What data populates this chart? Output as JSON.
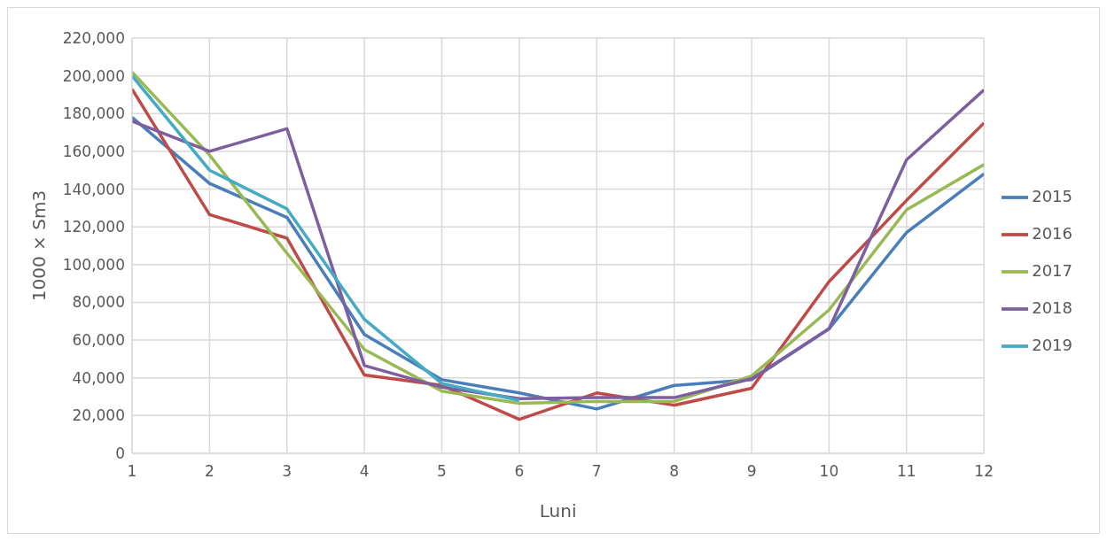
{
  "chart_data": {
    "type": "line",
    "xlabel": "Luni",
    "ylabel": "1000 × Sm3",
    "x": [
      1,
      2,
      3,
      4,
      5,
      6,
      7,
      8,
      9,
      10,
      11,
      12
    ],
    "xlim": [
      1,
      12
    ],
    "xticks": [
      1,
      2,
      3,
      4,
      5,
      6,
      7,
      8,
      9,
      10,
      11,
      12
    ],
    "series": [
      {
        "name": "2015",
        "color": "#4a7ebb",
        "values": [
          178000,
          143000,
          125000,
          63000,
          39000,
          32000,
          23500,
          36000,
          39000,
          66000,
          117000,
          148000
        ]
      },
      {
        "name": "2016",
        "color": "#be4b48",
        "values": [
          193000,
          126500,
          114000,
          41500,
          36000,
          18000,
          32000,
          25500,
          34500,
          91000,
          134000,
          175000
        ]
      },
      {
        "name": "2017",
        "color": "#98b954",
        "values": [
          202000,
          158000,
          106000,
          55000,
          33000,
          26500,
          27500,
          27500,
          41000,
          76000,
          129000,
          153000
        ]
      },
      {
        "name": "2018",
        "color": "#7d5fa0",
        "values": [
          176000,
          160000,
          172000,
          46500,
          35000,
          29000,
          29500,
          29500,
          39500,
          66000,
          155500,
          192500
        ]
      },
      {
        "name": "2019",
        "color": "#46aac5",
        "values": [
          200000,
          150000,
          129500,
          71000,
          37000,
          28000,
          null,
          null,
          null,
          null,
          null,
          null
        ]
      }
    ],
    "ylim": [
      0,
      220000
    ],
    "yticks": [
      0,
      {
        "value": 20000,
        "label": "20,000"
      },
      {
        "value": 40000,
        "label": "40,000"
      },
      {
        "value": 60000,
        "label": "60,000"
      },
      {
        "value": 80000,
        "label": "80,000"
      },
      {
        "value": 100000,
        "label": "100,000"
      },
      {
        "value": 120000,
        "label": "120,000"
      },
      {
        "value": 140000,
        "label": "140,000"
      },
      {
        "value": 160000,
        "label": "160,000"
      },
      {
        "value": 180000,
        "label": "180,000"
      },
      {
        "value": 200000,
        "label": "200,000"
      },
      {
        "value": 220000,
        "label": "220,000"
      }
    ],
    "grid": true,
    "legend": "right",
    "marker": "none",
    "line_style": "solid"
  }
}
